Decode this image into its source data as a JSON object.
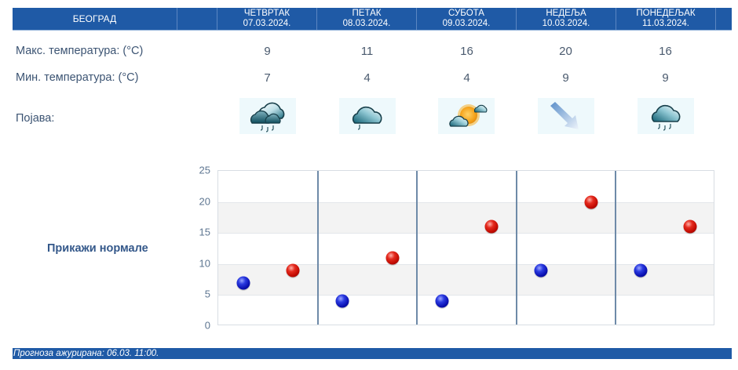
{
  "header": {
    "city": "БЕОГРАД",
    "days": [
      {
        "name": "ЧЕТВРТАК",
        "date": "07.03.2024."
      },
      {
        "name": "ПЕТАК",
        "date": "08.03.2024."
      },
      {
        "name": "СУБОТА",
        "date": "09.03.2024."
      },
      {
        "name": "НЕДЕЉА",
        "date": "10.03.2024."
      },
      {
        "name": "ПОНЕДЕЉАК",
        "date": "11.03.2024."
      }
    ]
  },
  "rows": {
    "max_label": "Макс. температура: (°C)",
    "min_label": "Мин. температура: (°C)",
    "phenomenon_label": "Појава:",
    "max_values": [
      "9",
      "11",
      "16",
      "20",
      "16"
    ],
    "min_values": [
      "7",
      "4",
      "4",
      "9",
      "9"
    ],
    "icons": [
      "cloudy-rain-icon",
      "cloud-light-rain-icon",
      "partly-sunny-icon",
      "wind-arrow-icon",
      "cloud-rain-icon"
    ]
  },
  "normals_link": "Прикажи нормале",
  "chart_data": {
    "type": "scatter",
    "title": "",
    "xlabel": "",
    "ylabel": "",
    "categories": [
      "07.03.2024.",
      "08.03.2024.",
      "09.03.2024.",
      "10.03.2024.",
      "11.03.2024."
    ],
    "series": [
      {
        "name": "Мин. температура",
        "color": "#0a10b0",
        "values": [
          7,
          4,
          4,
          9,
          9
        ]
      },
      {
        "name": "Макс. температура",
        "color": "#c00a00",
        "values": [
          9,
          11,
          16,
          20,
          16
        ]
      }
    ],
    "ylim": [
      0,
      25
    ],
    "yticks": [
      "0",
      "5",
      "10",
      "15",
      "20",
      "25"
    ],
    "grid": true,
    "legend": "none"
  },
  "footer": {
    "text": "Прогноза ажурирана:  06.03. 11:00."
  },
  "colors": {
    "header_bg": "#1f5aa6",
    "min_dot": "#0a10b0",
    "max_dot": "#c00a00"
  }
}
